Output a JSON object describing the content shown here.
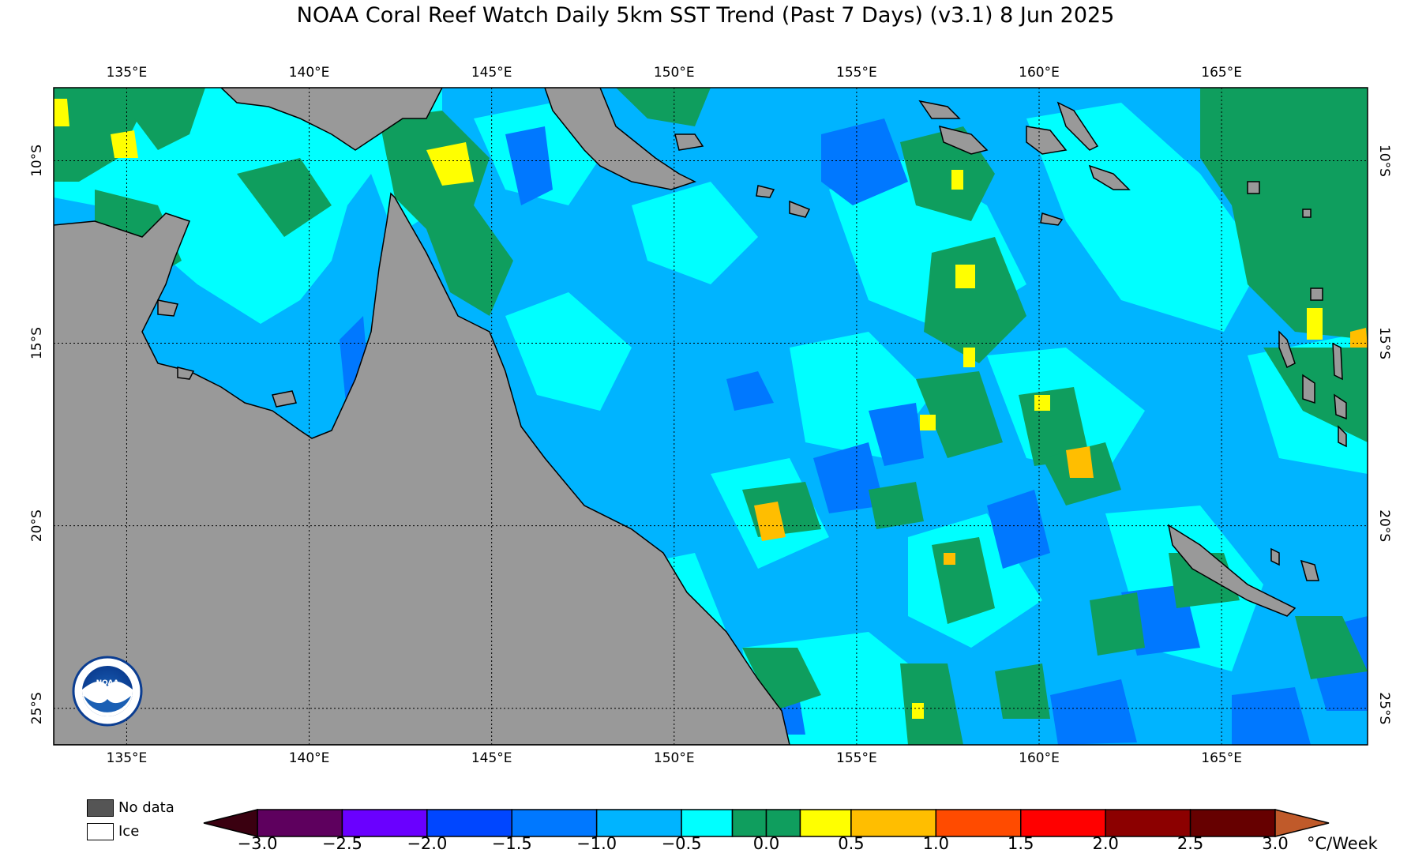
{
  "title": "NOAA Coral Reef Watch Daily 5km SST Trend (Past 7 Days)  (v3.1)   8 Jun 2025",
  "map": {
    "lon_ticks": [
      "135°E",
      "140°E",
      "145°E",
      "150°E",
      "155°E",
      "160°E",
      "165°E"
    ],
    "lon_values": [
      135,
      140,
      145,
      150,
      155,
      160,
      165
    ],
    "lat_ticks": [
      "10°S",
      "15°S",
      "20°S",
      "25°S"
    ],
    "lat_values": [
      -10,
      -15,
      -20,
      -25
    ],
    "lon_range": [
      133,
      169
    ],
    "lat_range": [
      -8,
      -26
    ],
    "land_color": "#999999",
    "gridlines": true
  },
  "legend": {
    "no_data_label": "No data",
    "no_data_color": "#555555",
    "ice_label": "Ice",
    "ice_color": "#ffffff",
    "unit": "°C/Week",
    "tick_labels": [
      "−3.0",
      "−2.5",
      "−2.0",
      "−1.5",
      "−1.0",
      "−0.5",
      "0.0",
      "0.5",
      "1.0",
      "1.5",
      "2.0",
      "2.5",
      "3.0"
    ],
    "colors": [
      "#3a0010",
      "#5e005e",
      "#7a00e8",
      "#6a00ff",
      "#0046ff",
      "#0078ff",
      "#00b4ff",
      "#00ffff",
      "#0f9e5e",
      "#0f9e5e",
      "#ffff00",
      "#ffbe00",
      "#ff4b00",
      "#ff0000",
      "#b80000",
      "#8c0000",
      "#660000",
      "#c05a2a"
    ]
  },
  "logo": {
    "name": "NOAA"
  }
}
